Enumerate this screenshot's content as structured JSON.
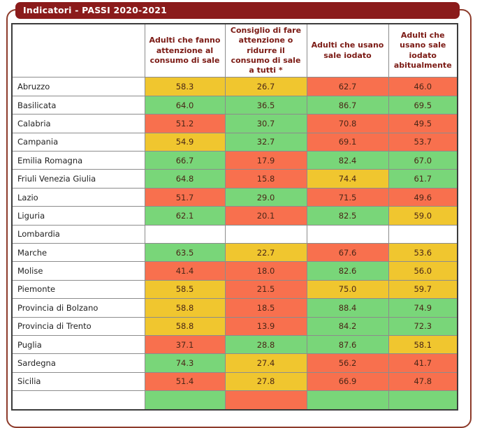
{
  "panel": {
    "title": "Indicatori - PASSI 2020-2021"
  },
  "table": {
    "columns": [
      "",
      "Adulti che fanno attenzione al consumo di sale",
      "Consiglio di fare attenzione o ridurre il consumo di sale a tutti *",
      "Adulti che usano sale iodato",
      "Adulti che usano sale iodato abitualmente"
    ],
    "rows": [
      {
        "region": "Abruzzo",
        "values": [
          "58.3",
          "26.7",
          "62.7",
          "46.0"
        ],
        "colors": [
          "yellow",
          "yellow",
          "red",
          "red"
        ]
      },
      {
        "region": "Basilicata",
        "values": [
          "64.0",
          "36.5",
          "86.7",
          "69.5"
        ],
        "colors": [
          "green",
          "green",
          "green",
          "green"
        ]
      },
      {
        "region": "Calabria",
        "values": [
          "51.2",
          "30.7",
          "70.8",
          "49.5"
        ],
        "colors": [
          "red",
          "green",
          "red",
          "red"
        ]
      },
      {
        "region": "Campania",
        "values": [
          "54.9",
          "32.7",
          "69.1",
          "53.7"
        ],
        "colors": [
          "yellow",
          "green",
          "red",
          "red"
        ]
      },
      {
        "region": "Emilia Romagna",
        "values": [
          "66.7",
          "17.9",
          "82.4",
          "67.0"
        ],
        "colors": [
          "green",
          "red",
          "green",
          "green"
        ]
      },
      {
        "region": "Friuli Venezia Giulia",
        "values": [
          "64.8",
          "15.8",
          "74.4",
          "61.7"
        ],
        "colors": [
          "green",
          "red",
          "yellow",
          "green"
        ]
      },
      {
        "region": "Lazio",
        "values": [
          "51.7",
          "29.0",
          "71.5",
          "49.6"
        ],
        "colors": [
          "red",
          "green",
          "red",
          "red"
        ]
      },
      {
        "region": "Liguria",
        "values": [
          "62.1",
          "20.1",
          "82.5",
          "59.0"
        ],
        "colors": [
          "green",
          "red",
          "green",
          "yellow"
        ]
      },
      {
        "region": "Lombardia",
        "values": [
          "",
          "",
          "",
          ""
        ],
        "colors": [
          "white",
          "white",
          "white",
          "white"
        ]
      },
      {
        "region": "Marche",
        "values": [
          "63.5",
          "22.7",
          "67.6",
          "53.6"
        ],
        "colors": [
          "green",
          "yellow",
          "red",
          "yellow"
        ]
      },
      {
        "region": "Molise",
        "values": [
          "41.4",
          "18.0",
          "82.6",
          "56.0"
        ],
        "colors": [
          "red",
          "red",
          "green",
          "yellow"
        ]
      },
      {
        "region": "Piemonte",
        "values": [
          "58.5",
          "21.5",
          "75.0",
          "59.7"
        ],
        "colors": [
          "yellow",
          "red",
          "yellow",
          "yellow"
        ]
      },
      {
        "region": "Provincia di Bolzano",
        "values": [
          "58.8",
          "18.5",
          "88.4",
          "74.9"
        ],
        "colors": [
          "yellow",
          "red",
          "green",
          "green"
        ]
      },
      {
        "region": "Provincia di Trento",
        "values": [
          "58.8",
          "13.9",
          "84.2",
          "72.3"
        ],
        "colors": [
          "yellow",
          "red",
          "green",
          "green"
        ]
      },
      {
        "region": "Puglia",
        "values": [
          "37.1",
          "28.8",
          "87.6",
          "58.1"
        ],
        "colors": [
          "red",
          "green",
          "green",
          "yellow"
        ]
      },
      {
        "region": "Sardegna",
        "values": [
          "74.3",
          "27.4",
          "56.2",
          "41.7"
        ],
        "colors": [
          "green",
          "yellow",
          "red",
          "red"
        ]
      },
      {
        "region": "Sicilia",
        "values": [
          "51.4",
          "27.8",
          "66.9",
          "47.8"
        ],
        "colors": [
          "red",
          "yellow",
          "red",
          "red"
        ]
      },
      {
        "region": "",
        "values": [
          "",
          "",
          "",
          ""
        ],
        "colors": [
          "green",
          "red",
          "green",
          "green"
        ]
      }
    ]
  },
  "cell_colors": {
    "green": "#79d679",
    "yellow": "#f0c62f",
    "red": "#f8704e",
    "white": "#ffffff"
  },
  "theme": {
    "banner_bg": "#8b1b1b",
    "banner_text": "#ffffff",
    "frame_border": "#8d3b2b",
    "header_text": "#7b1a14",
    "value_text": "#4a2617"
  }
}
